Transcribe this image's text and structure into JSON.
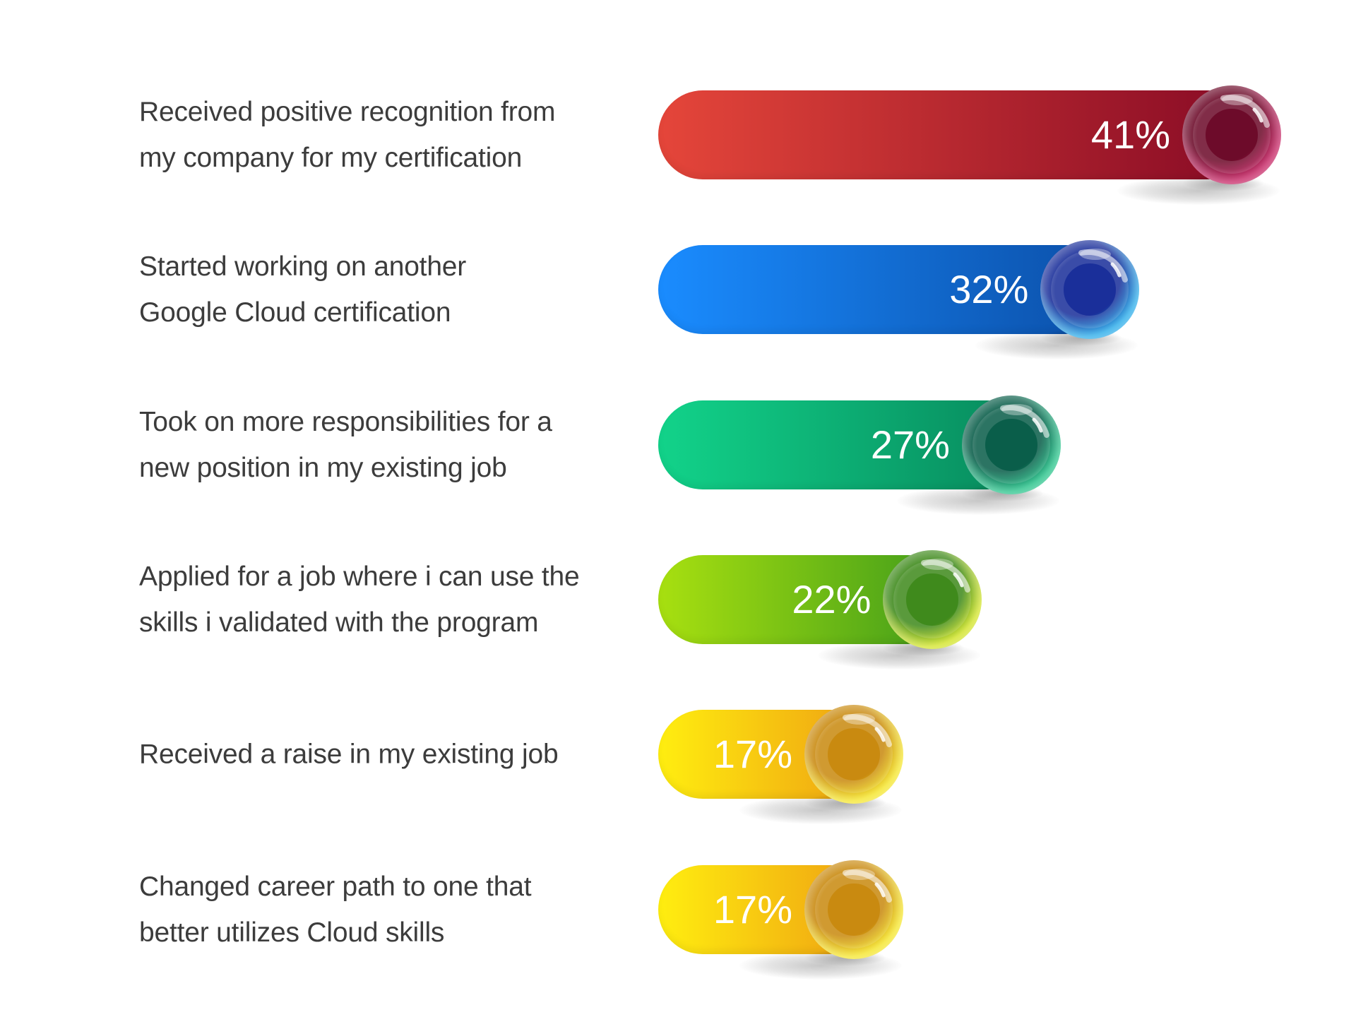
{
  "chart_data": {
    "type": "bar",
    "orientation": "horizontal",
    "categories": [
      [
        "Received positive recognition from",
        "my company for my certification"
      ],
      [
        "Started working on another",
        "Google Cloud certification"
      ],
      [
        "Took on more responsibilities for a",
        "new position in my existing job"
      ],
      [
        "Applied for a job where i can use the",
        "skills i validated with the program"
      ],
      [
        "Received a raise in my existing job"
      ],
      [
        "Changed career path to one that",
        "better utilizes Cloud skills"
      ]
    ],
    "values": [
      41,
      32,
      27,
      22,
      17,
      17
    ],
    "value_labels": [
      "41%",
      "32%",
      "27%",
      "22%",
      "17%",
      "17%"
    ],
    "unit": "%",
    "title": "",
    "xlabel": "",
    "ylabel": "",
    "xlim": [
      0,
      41
    ],
    "grid": false,
    "legend": "none"
  },
  "colors": {
    "background": "#ffffff",
    "label_text": "#3c3c3c",
    "value_text": "#ffffff",
    "bars": [
      {
        "start": "#e5463a",
        "end": "#870a25",
        "knob": "#c2185b",
        "knob_dark": "#6d0b2a"
      },
      {
        "start": "#1a8cff",
        "end": "#0b4fa8",
        "knob": "#1ea7e8",
        "knob_dark": "#1a2f9a"
      },
      {
        "start": "#12d38a",
        "end": "#07885c",
        "knob": "#1bbf83",
        "knob_dark": "#0a5e4a"
      },
      {
        "start": "#a8e010",
        "end": "#3f9b1a",
        "knob": "#cfe21a",
        "knob_dark": "#3f8a1c"
      },
      {
        "start": "#ffee10",
        "end": "#ee9e12",
        "knob": "#f4e41e",
        "knob_dark": "#c98a10"
      },
      {
        "start": "#ffee10",
        "end": "#ee9e12",
        "knob": "#f4e41e",
        "knob_dark": "#c98a10"
      }
    ]
  }
}
